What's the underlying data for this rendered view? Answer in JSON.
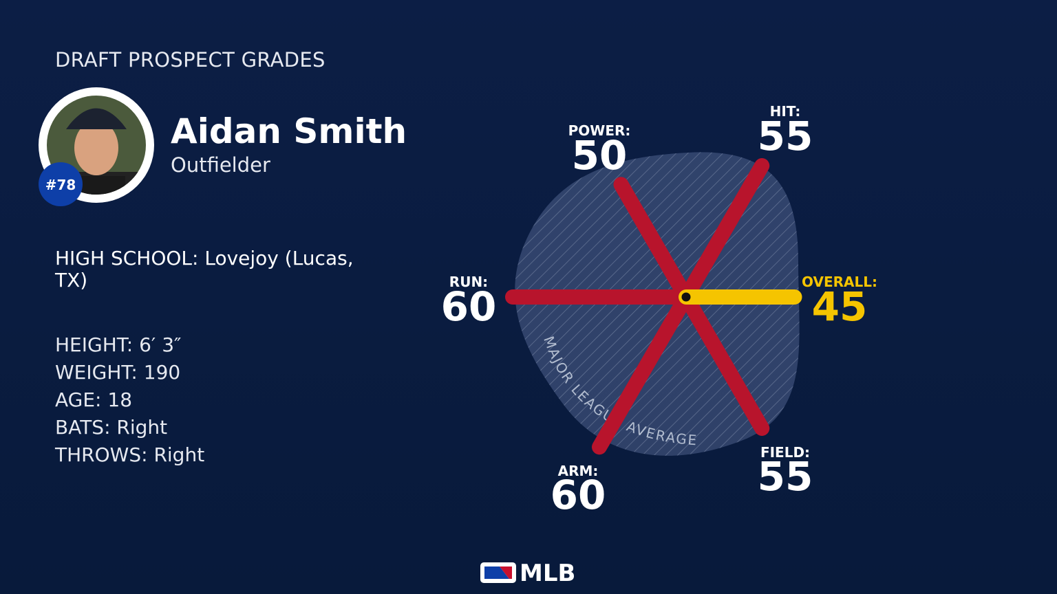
{
  "header": {
    "title": "DRAFT PROSPECT GRADES"
  },
  "player": {
    "name": "Aidan Smith",
    "position": "Outfielder",
    "rank": "#78"
  },
  "info": {
    "school": "HIGH SCHOOL: Lovejoy (Lucas, TX)",
    "lines": [
      "HEIGHT: 6′ 3″",
      "WEIGHT: 190",
      "AGE: 18",
      "BATS: Right",
      "THROWS: Right"
    ]
  },
  "grades": [
    {
      "label": "HIT:",
      "value": 55
    },
    {
      "label": "POWER:",
      "value": 50
    },
    {
      "label": "RUN:",
      "value": 60
    },
    {
      "label": "ARM:",
      "value": 60
    },
    {
      "label": "FIELD:",
      "value": 55
    },
    {
      "label": "OVERALL:",
      "value": 45
    }
  ],
  "average_label": "MAJOR LEAGUE AVERAGE",
  "logo": "MLB"
}
